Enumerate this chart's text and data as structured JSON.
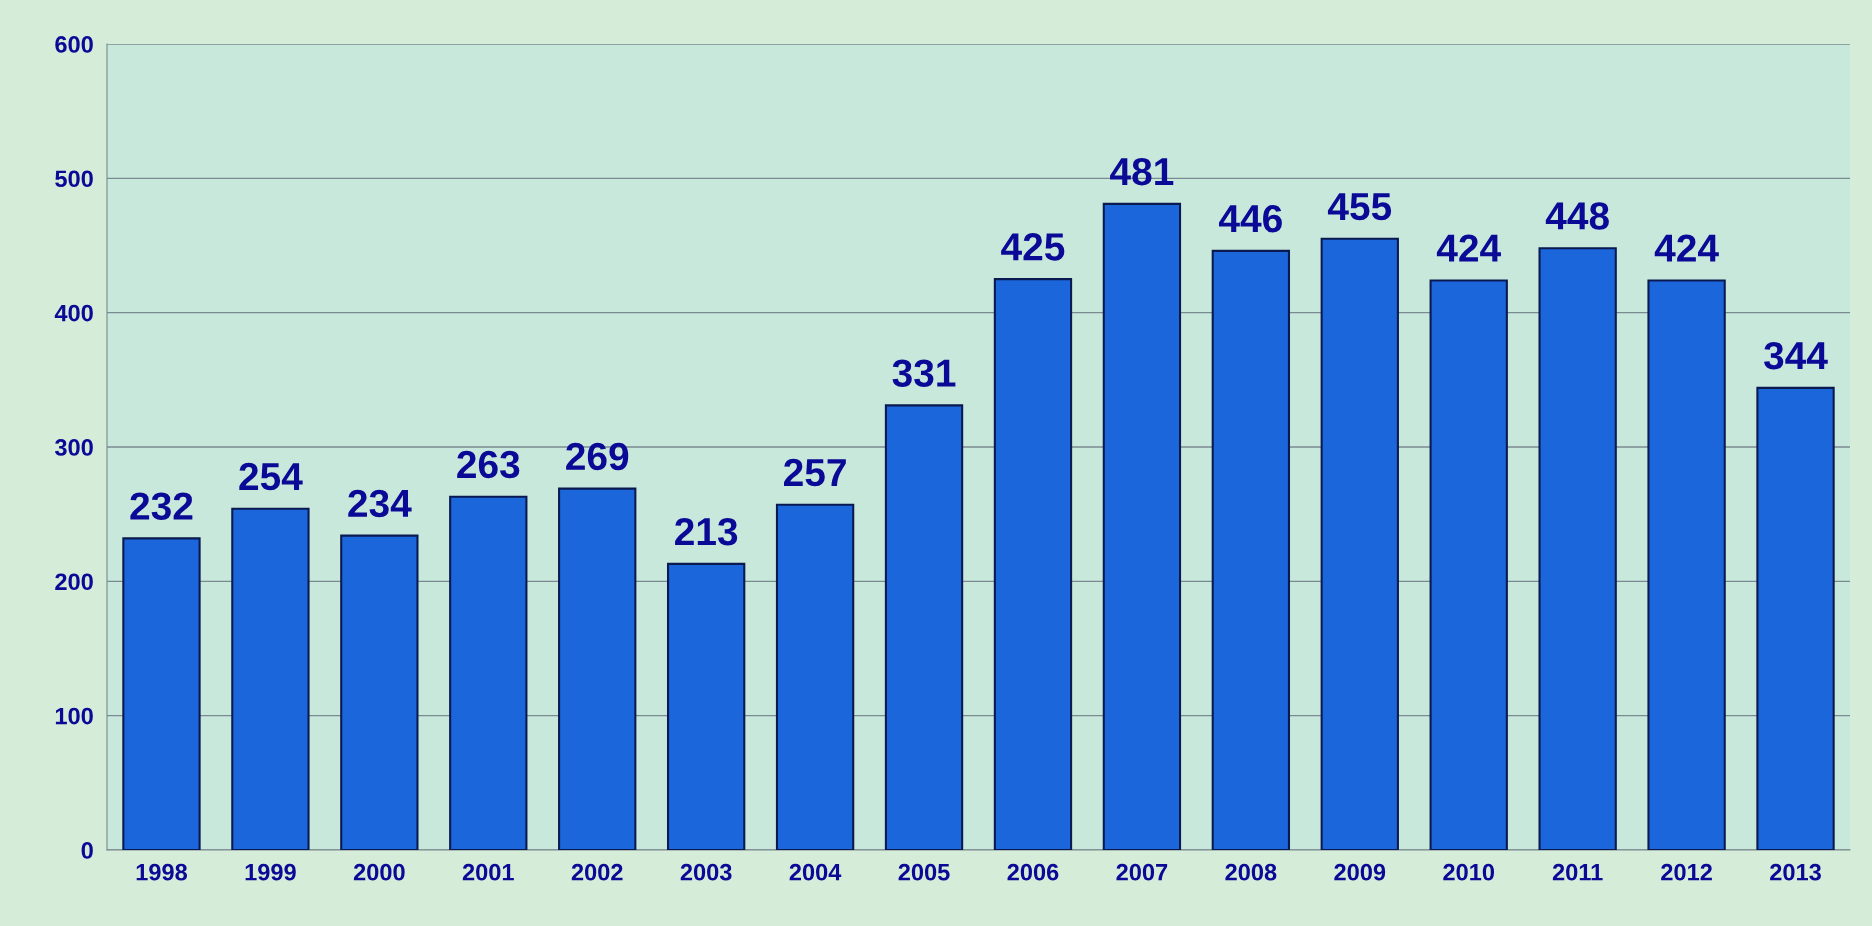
{
  "chart_data": {
    "type": "bar",
    "categories": [
      "1998",
      "1999",
      "2000",
      "2001",
      "2002",
      "2003",
      "2004",
      "2005",
      "2006",
      "2007",
      "2008",
      "2009",
      "2010",
      "2011",
      "2012",
      "2013"
    ],
    "values": [
      232,
      254,
      234,
      263,
      269,
      213,
      257,
      331,
      425,
      481,
      446,
      455,
      424,
      448,
      424,
      344
    ],
    "color": "#1c66dc",
    "ylim": [
      0,
      600
    ],
    "yticks": [
      0,
      100,
      200,
      300,
      400,
      500,
      600
    ],
    "grid": "y",
    "data_labels": true
  }
}
